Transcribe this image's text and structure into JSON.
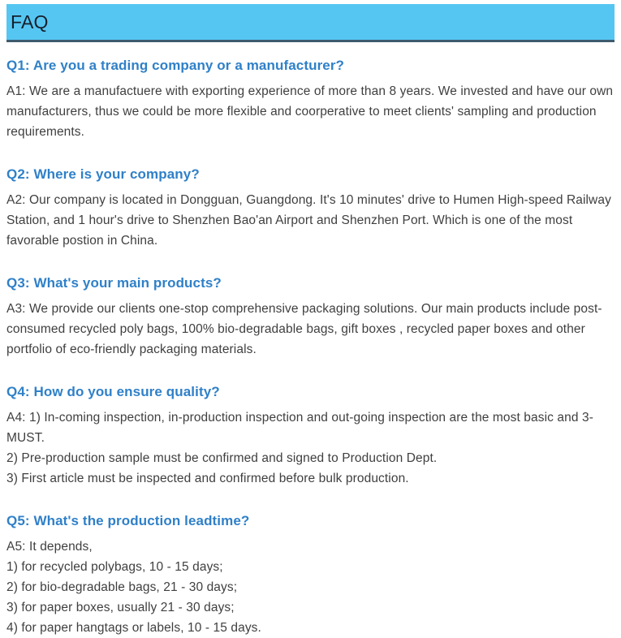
{
  "header": {
    "title": "FAQ"
  },
  "colors": {
    "page_background": "#FFFFFF",
    "header_background": "#55C6F2",
    "header_border": "#3E5B6E",
    "header_text": "#151F2B",
    "question_text": "#2F80C8",
    "answer_text": "#3F3F3F"
  },
  "faq": {
    "items": [
      {
        "question": "Q1: Are you a trading company or a manufacturer?",
        "answer_lines": [
          "A1: We are a manufactuere with exporting experience of more than 8 years. We invested and have our own manufacturers, thus we could be more flexible and coorperative to meet clients' sampling and production requirements."
        ]
      },
      {
        "question": "Q2: Where is your company?",
        "answer_lines": [
          "A2: Our company is located in Dongguan, Guangdong. It's 10 minutes' drive to Humen High-speed Railway Station, and 1 hour's drive to Shenzhen Bao'an Airport and Shenzhen Port. Which is one of the most favorable postion in China."
        ]
      },
      {
        "question": "Q3: What's your main products?",
        "answer_lines": [
          "A3: We provide our clients one-stop comprehensive packaging solutions. Our main products include post-consumed recycled poly bags, 100% bio-degradable bags, gift boxes , recycled paper boxes and other portfolio of eco-friendly packaging materials."
        ]
      },
      {
        "question": "Q4: How do you ensure quality?",
        "answer_lines": [
          "A4: 1) In-coming inspection, in-production inspection and out-going inspection are the most basic and 3-MUST.",
          "2) Pre-production sample must be confirmed and signed to Production Dept.",
          "3) First article must be inspected and confirmed before bulk production."
        ]
      },
      {
        "question": "Q5: What's the production leadtime?",
        "answer_lines": [
          "A5: It depends,",
          "1) for recycled polybags, 10 - 15 days;",
          "2) for bio-degradable bags, 21 - 30 days;",
          "3) for paper boxes, usually 21 - 30 days;",
          "4) for paper hangtags or labels, 10 - 15 days."
        ]
      }
    ]
  }
}
